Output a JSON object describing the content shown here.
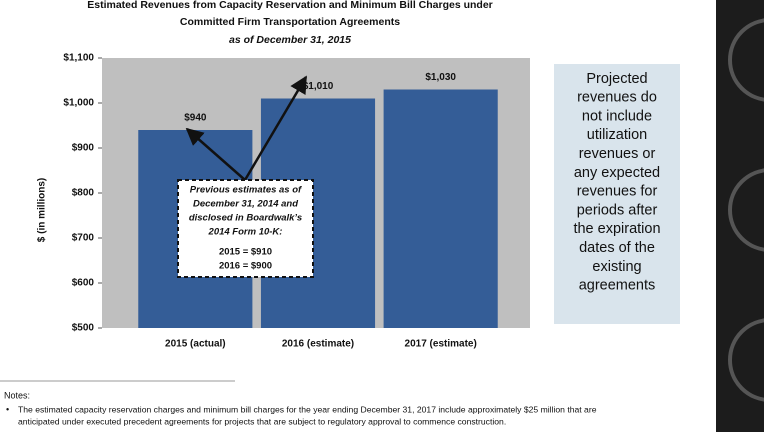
{
  "chart_data": {
    "type": "bar",
    "title": [
      "Estimated Revenues from Capacity Reservation and Minimum Bill Charges under",
      "Committed Firm Transportation Agreements"
    ],
    "subtitle": "as of December 31, 2015",
    "ylabel": "$ (in millions)",
    "categories": [
      "2015 (actual)",
      "2016 (estimate)",
      "2017 (estimate)"
    ],
    "values": [
      940,
      1010,
      1030
    ],
    "value_labels": [
      "$940",
      "$1,010",
      "$1,030"
    ],
    "color": "#345d97",
    "ylim": [
      500,
      1100
    ],
    "yticks": [
      {
        "value": 500,
        "label": "$500"
      },
      {
        "value": 600,
        "label": "$600"
      },
      {
        "value": 700,
        "label": "$700"
      },
      {
        "value": 800,
        "label": "$800"
      },
      {
        "value": 900,
        "label": "$900"
      },
      {
        "value": 1000,
        "label": "$1,000"
      },
      {
        "value": 1100,
        "label": "$1,100"
      }
    ],
    "annotation": [
      "Previous estimates as of",
      "December 31, 2014 and",
      "disclosed in Boardwalk’s",
      "2014 Form 10-K:",
      "2015 = $910",
      "2016 = $900"
    ],
    "side_note": [
      "Projected",
      "revenues do",
      "not include",
      "utilization",
      "revenues or",
      "any expected",
      "revenues for",
      "periods after",
      "the expiration",
      "dates of the",
      "existing",
      "agreements"
    ],
    "notes_heading": "Notes:",
    "notes": [
      "The estimated capacity reservation charges and minimum bill charges for the year ending December 31, 2017 include approximately $25 million that are",
      "anticipated under executed precedent agreements for projects that are subject to regulatory approval to commence construction."
    ]
  }
}
